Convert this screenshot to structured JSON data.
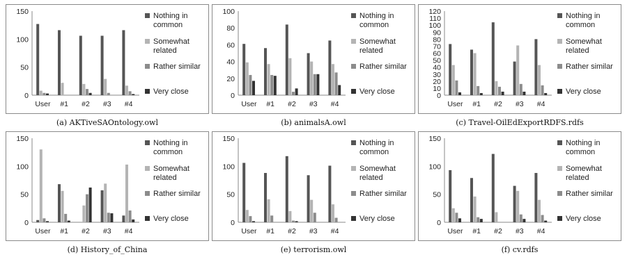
{
  "legend_labels": [
    [
      "Nothing in",
      "common"
    ],
    [
      "Somewhat",
      "related"
    ],
    [
      "Rather similar"
    ],
    [
      "Very close"
    ]
  ],
  "series_colors": [
    "#555555",
    "#b4b4b4",
    "#8c8c8c",
    "#333333"
  ],
  "chart_data": [
    {
      "type": "bar",
      "caption": "(a) AKTiveSAOntology.owl",
      "categories": [
        "User",
        "#1",
        "#2",
        "#3",
        "#4"
      ],
      "ylim": [
        0,
        150
      ],
      "yticks": [
        "0",
        "50",
        "100",
        "150"
      ],
      "series": [
        {
          "name": "Nothing in common",
          "values": [
            127,
            116,
            106,
            106,
            116
          ]
        },
        {
          "name": "Somewhat related",
          "values": [
            8,
            22,
            20,
            29,
            17
          ]
        },
        {
          "name": "Rather similar",
          "values": [
            4,
            0,
            11,
            4,
            7
          ]
        },
        {
          "name": "Very close",
          "values": [
            3,
            0,
            4,
            0,
            2
          ]
        }
      ]
    },
    {
      "type": "bar",
      "caption": "(b) animalsA.owl",
      "categories": [
        "User",
        "#1",
        "#2",
        "#3",
        "#4"
      ],
      "ylim": [
        0,
        100
      ],
      "yticks": [
        "0",
        "20",
        "40",
        "60",
        "80",
        "100"
      ],
      "series": [
        {
          "name": "Nothing in common",
          "values": [
            61,
            56,
            84,
            50,
            65
          ]
        },
        {
          "name": "Somewhat related",
          "values": [
            39,
            37,
            44,
            40,
            37
          ]
        },
        {
          "name": "Rather similar",
          "values": [
            24,
            24,
            4,
            25,
            27
          ]
        },
        {
          "name": "Very close",
          "values": [
            17,
            23,
            8,
            25,
            12
          ]
        }
      ]
    },
    {
      "type": "bar",
      "caption": "(c) Travel-OilEdExportRDFS.rdfs",
      "categories": [
        "User",
        "#1",
        "#2",
        "#3",
        "#4"
      ],
      "ylim": [
        0,
        120
      ],
      "yticks": [
        "0",
        "10",
        "20",
        "30",
        "40",
        "50",
        "60",
        "70",
        "80",
        "90",
        "100",
        "110",
        "120"
      ],
      "series": [
        {
          "name": "Nothing in common",
          "values": [
            73,
            65,
            104,
            48,
            80
          ]
        },
        {
          "name": "Somewhat related",
          "values": [
            43,
            60,
            20,
            71,
            43
          ]
        },
        {
          "name": "Rather similar",
          "values": [
            21,
            13,
            12,
            16,
            14
          ]
        },
        {
          "name": "Very close",
          "values": [
            4,
            3,
            5,
            5,
            3
          ]
        }
      ]
    },
    {
      "type": "bar",
      "caption": "(d) History_of_China",
      "categories": [
        "User",
        "#1",
        "#2",
        "#3",
        "#4"
      ],
      "ylim": [
        0,
        150
      ],
      "yticks": [
        "0",
        "50",
        "100",
        "150"
      ],
      "series": [
        {
          "name": "Nothing in common",
          "values": [
            4,
            68,
            0,
            57,
            12
          ]
        },
        {
          "name": "Somewhat related",
          "values": [
            130,
            56,
            30,
            69,
            103
          ]
        },
        {
          "name": "Rather similar",
          "values": [
            7,
            15,
            50,
            17,
            21
          ]
        },
        {
          "name": "Very close",
          "values": [
            2,
            3,
            62,
            16,
            5
          ]
        }
      ]
    },
    {
      "type": "bar",
      "caption": "(e) terrorism.owl",
      "categories": [
        "User",
        "#1",
        "#2",
        "#3",
        "#4"
      ],
      "ylim": [
        0,
        150
      ],
      "yticks": [
        "0",
        "50",
        "100",
        "150"
      ],
      "series": [
        {
          "name": "Nothing in common",
          "values": [
            106,
            88,
            118,
            84,
            101
          ]
        },
        {
          "name": "Somewhat related",
          "values": [
            22,
            41,
            20,
            40,
            32
          ]
        },
        {
          "name": "Rather similar",
          "values": [
            11,
            12,
            3,
            17,
            8
          ]
        },
        {
          "name": "Very close",
          "values": [
            2,
            0,
            2,
            0,
            0
          ]
        }
      ]
    },
    {
      "type": "bar",
      "caption": "(f) cv.rdfs",
      "categories": [
        "User",
        "#1",
        "#2",
        "#3",
        "#4"
      ],
      "ylim": [
        0,
        150
      ],
      "yticks": [
        "0",
        "50",
        "100",
        "150"
      ],
      "series": [
        {
          "name": "Nothing in common",
          "values": [
            93,
            79,
            122,
            65,
            88
          ]
        },
        {
          "name": "Somewhat related",
          "values": [
            25,
            46,
            18,
            56,
            40
          ]
        },
        {
          "name": "Rather similar",
          "values": [
            17,
            9,
            0,
            14,
            13
          ]
        },
        {
          "name": "Very close",
          "values": [
            7,
            6,
            0,
            6,
            3
          ]
        }
      ]
    }
  ]
}
